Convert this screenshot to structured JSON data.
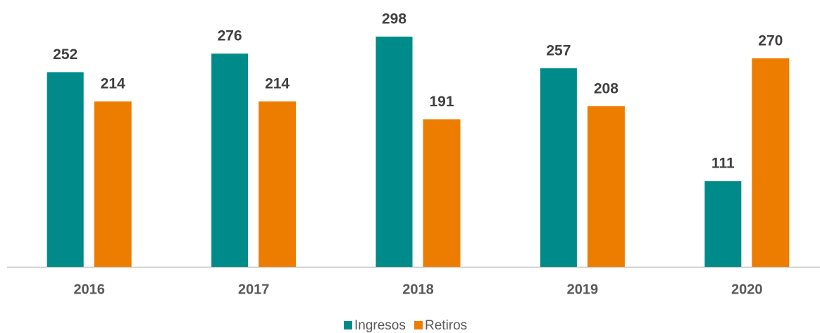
{
  "chart_data": {
    "type": "bar",
    "categories": [
      "2016",
      "2017",
      "2018",
      "2019",
      "2020"
    ],
    "series": [
      {
        "name": "Ingresos",
        "color": "#008B8B",
        "values": [
          252,
          276,
          298,
          257,
          111
        ]
      },
      {
        "name": "Retiros",
        "color": "#ED7D00",
        "values": [
          214,
          214,
          191,
          208,
          270
        ]
      }
    ]
  }
}
